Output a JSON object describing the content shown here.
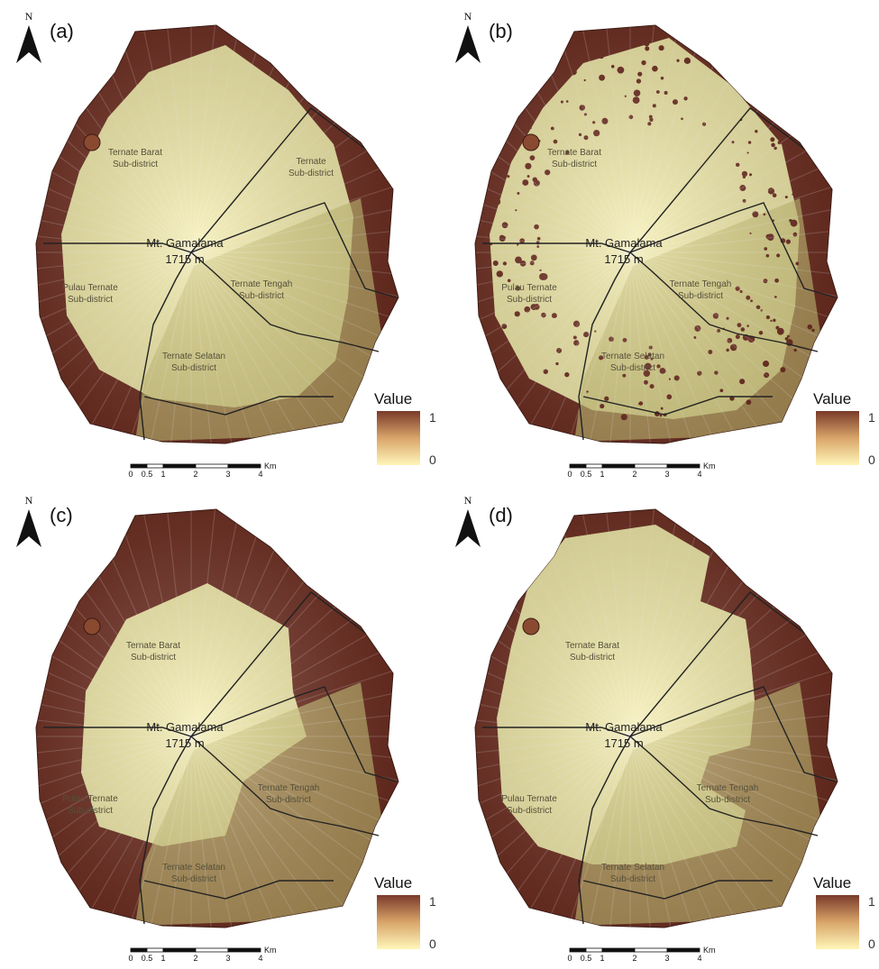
{
  "panels": [
    {
      "label": "(a)",
      "north": "N",
      "places": [
        {
          "name": "Ternate Barat",
          "sub": "Sub-district"
        },
        {
          "name": "Ternate",
          "sub": "Sub-district"
        },
        {
          "name": "Pulau Ternate",
          "sub": "Sub-district"
        },
        {
          "name": "Ternate Tengah",
          "sub": "Sub-district"
        },
        {
          "name": "Ternate Selatan",
          "sub": "Sub-district"
        }
      ],
      "peak": "Mt. Gamalama",
      "elevation": "1715 m",
      "legend": {
        "title": "Value",
        "max": "1",
        "min": "0"
      },
      "scale_bar": {
        "ticks": [
          "0",
          "0.5",
          "1",
          "2",
          "3",
          "4"
        ],
        "unit": "Km"
      }
    },
    {
      "label": "(b)",
      "north": "N",
      "places": [
        {
          "name": "Ternate Barat",
          "sub": "Sub-district"
        },
        {
          "name": "Pulau Ternate",
          "sub": "Sub-district"
        },
        {
          "name": "Ternate Tengah",
          "sub": "Sub-district"
        },
        {
          "name": "Ternate Selatan",
          "sub": "Sub-district"
        }
      ],
      "peak": "Mt. Gamalama",
      "elevation": "1715 m",
      "legend": {
        "title": "Value",
        "max": "1",
        "min": "0"
      },
      "scale_bar": {
        "ticks": [
          "0",
          "0.5",
          "1",
          "2",
          "3",
          "4"
        ],
        "unit": "Km"
      }
    },
    {
      "label": "(c)",
      "north": "N",
      "places": [
        {
          "name": "Ternate Barat",
          "sub": "Sub-district"
        },
        {
          "name": "Pulau Ternate",
          "sub": "Sub-district"
        },
        {
          "name": "Ternate Tengah",
          "sub": "Sub-district"
        },
        {
          "name": "Ternate Selatan",
          "sub": "Sub-district"
        }
      ],
      "peak": "Mt. Gamalama",
      "elevation": "1715 m",
      "legend": {
        "title": "Value",
        "max": "1",
        "min": "0"
      },
      "scale_bar": {
        "ticks": [
          "0",
          "0.5",
          "1",
          "2",
          "3",
          "4"
        ],
        "unit": "Km"
      }
    },
    {
      "label": "(d)",
      "north": "N",
      "places": [
        {
          "name": "Ternate Barat",
          "sub": "Sub-district"
        },
        {
          "name": "Pulau Ternate",
          "sub": "Sub-district"
        },
        {
          "name": "Ternate Tengah",
          "sub": "Sub-district"
        },
        {
          "name": "Ternate Selatan",
          "sub": "Sub-district"
        }
      ],
      "peak": "Mt. Gamalama",
      "elevation": "1715 m",
      "legend": {
        "title": "Value",
        "max": "1",
        "min": "0"
      },
      "scale_bar": {
        "ticks": [
          "0",
          "0.5",
          "1",
          "2",
          "3",
          "4"
        ],
        "unit": "Km"
      }
    }
  ]
}
